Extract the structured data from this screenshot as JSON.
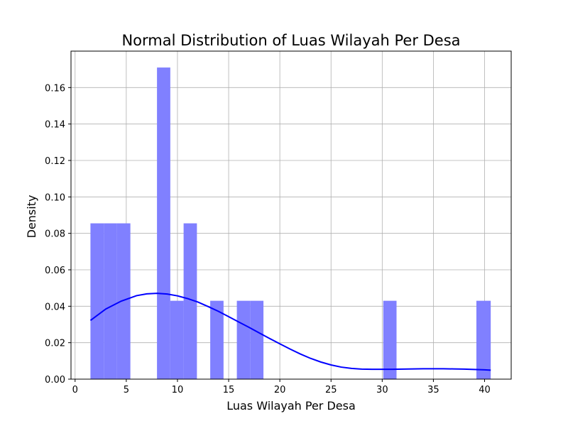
{
  "chart_data": {
    "type": "bar",
    "title": "Normal Distribution of Luas Wilayah Per Desa",
    "xlabel": "Luas Wilayah Per Desa",
    "ylabel": "Density",
    "xlim": [
      -0.4,
      42.6
    ],
    "ylim": [
      0,
      0.18
    ],
    "xticks": [
      0,
      5,
      10,
      15,
      20,
      25,
      30,
      35,
      40
    ],
    "yticks": [
      "0.00",
      "0.02",
      "0.04",
      "0.06",
      "0.08",
      "0.10",
      "0.12",
      "0.14",
      "0.16"
    ],
    "grid": true,
    "bar_color": "#8080ff",
    "line_color": "#0000ff",
    "histogram": {
      "bin_edges": [
        1.5,
        2.8,
        4.1,
        5.4,
        6.7,
        8.0,
        9.3,
        10.6,
        11.9,
        13.2,
        14.5,
        15.8,
        17.1,
        18.4,
        19.7,
        21.0,
        22.3,
        23.6,
        24.9,
        26.2,
        27.5,
        28.8,
        30.1,
        31.4,
        32.7,
        34.0,
        35.3,
        36.6,
        37.9,
        39.2,
        40.6
      ],
      "values": [
        0.0855,
        0.0855,
        0.0855,
        0,
        0,
        0.171,
        0.043,
        0.0855,
        0,
        0.043,
        0,
        0.043,
        0.043,
        0,
        0,
        0,
        0,
        0,
        0,
        0,
        0,
        0,
        0.043,
        0,
        0,
        0,
        0,
        0,
        0,
        0.043
      ]
    },
    "density_curve": {
      "x": [
        1.5,
        3,
        4.5,
        6,
        7,
        8,
        9,
        10,
        11,
        12,
        13,
        14,
        15,
        16,
        17,
        18,
        19,
        20,
        21,
        22,
        23,
        24,
        25,
        26,
        27,
        28,
        29,
        30,
        31,
        32,
        33,
        34,
        35,
        36,
        37,
        38,
        39,
        40,
        40.6
      ],
      "y": [
        0.0322,
        0.0385,
        0.0428,
        0.0458,
        0.0468,
        0.0471,
        0.0467,
        0.0457,
        0.0442,
        0.0423,
        0.0398,
        0.0372,
        0.0343,
        0.0313,
        0.0284,
        0.0253,
        0.0223,
        0.0194,
        0.0165,
        0.0138,
        0.0114,
        0.0094,
        0.0078,
        0.0066,
        0.0059,
        0.0055,
        0.0054,
        0.0054,
        0.0054,
        0.0055,
        0.0056,
        0.0057,
        0.0057,
        0.0057,
        0.0056,
        0.0055,
        0.0053,
        0.0051,
        0.0049
      ]
    }
  }
}
